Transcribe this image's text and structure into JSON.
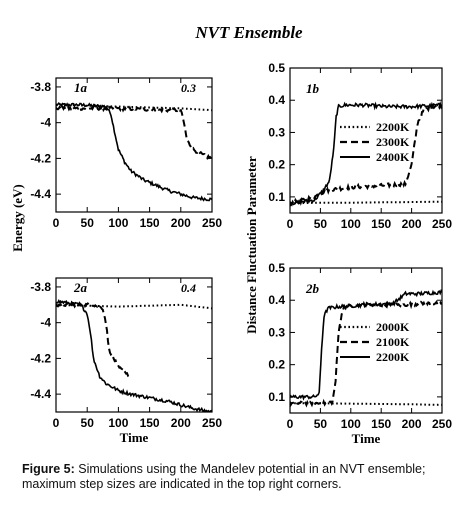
{
  "figure": {
    "title": "NVT Ensemble",
    "caption_label": "Figure 5:",
    "caption_text": "Simulations using the Mandelev potential in an NVT ensemble; maximum step sizes are indicated in the top right corners.",
    "left_ylabel": "Energy (eV)",
    "right_ylabel": "Distance Fluctuation Parameter"
  },
  "chart_data": [
    {
      "id": "1a",
      "type": "line",
      "panel_label": "1a",
      "corner_note": "0.3",
      "xlabel": "",
      "ylabel": "Energy (eV)",
      "xlim": [
        0,
        250
      ],
      "ylim": [
        -4.5,
        -3.75
      ],
      "xticks": [
        0,
        50,
        100,
        150,
        200,
        250
      ],
      "yticks": [
        -3.8,
        -4,
        -4.2,
        -4.4
      ],
      "series": [
        {
          "style": "solid",
          "x": [
            0,
            40,
            80,
            88,
            92,
            100,
            110,
            120,
            140,
            160,
            180,
            200,
            220,
            250
          ],
          "y": [
            -3.9,
            -3.9,
            -3.91,
            -3.95,
            -4.02,
            -4.15,
            -4.22,
            -4.27,
            -4.32,
            -4.35,
            -4.38,
            -4.4,
            -4.42,
            -4.43
          ]
        },
        {
          "style": "dashed",
          "x": [
            0,
            100,
            180,
            200,
            205,
            210,
            220,
            235,
            250
          ],
          "y": [
            -3.92,
            -3.92,
            -3.93,
            -3.93,
            -4.0,
            -4.1,
            -4.15,
            -4.18,
            -4.2
          ]
        },
        {
          "style": "dotted",
          "x": [
            0,
            100,
            200,
            250
          ],
          "y": [
            -3.9,
            -3.91,
            -3.92,
            -3.93
          ]
        }
      ]
    },
    {
      "id": "1b",
      "type": "line",
      "panel_label": "1b",
      "corner_note": "",
      "xlabel": "",
      "ylabel": "Distance Fluctuation Parameter",
      "xlim": [
        0,
        250
      ],
      "ylim": [
        0.05,
        0.5
      ],
      "xticks": [
        0,
        50,
        100,
        150,
        200,
        250
      ],
      "yticks": [
        0.1,
        0.2,
        0.3,
        0.4,
        0.5
      ],
      "legend": [
        "2200K",
        "2300K",
        "2400K"
      ],
      "series": [
        {
          "name": "2200K",
          "style": "dotted",
          "x": [
            0,
            50,
            100,
            150,
            200,
            250
          ],
          "y": [
            0.08,
            0.082,
            0.082,
            0.083,
            0.084,
            0.085
          ]
        },
        {
          "name": "2300K",
          "style": "dashed",
          "x": [
            0,
            40,
            60,
            100,
            150,
            190,
            200,
            210,
            220,
            235,
            250
          ],
          "y": [
            0.08,
            0.1,
            0.12,
            0.13,
            0.135,
            0.14,
            0.2,
            0.33,
            0.37,
            0.38,
            0.385
          ]
        },
        {
          "name": "2400K",
          "style": "solid",
          "x": [
            0,
            40,
            55,
            65,
            72,
            76,
            80,
            90,
            120,
            160,
            200,
            250
          ],
          "y": [
            0.08,
            0.09,
            0.12,
            0.15,
            0.25,
            0.35,
            0.38,
            0.385,
            0.385,
            0.38,
            0.38,
            0.385
          ]
        }
      ]
    },
    {
      "id": "2a",
      "type": "line",
      "panel_label": "2a",
      "corner_note": "0.4",
      "xlabel": "Time",
      "ylabel": "Energy (eV)",
      "xlim": [
        0,
        250
      ],
      "ylim": [
        -4.5,
        -3.75
      ],
      "xticks": [
        0,
        50,
        100,
        150,
        200,
        250
      ],
      "yticks": [
        -3.8,
        -4,
        -4.2,
        -4.4
      ],
      "series": [
        {
          "style": "solid",
          "x": [
            0,
            40,
            50,
            55,
            60,
            70,
            80,
            100,
            120,
            150,
            180,
            200,
            220,
            250
          ],
          "y": [
            -3.88,
            -3.9,
            -3.95,
            -4.05,
            -4.2,
            -4.3,
            -4.34,
            -4.38,
            -4.4,
            -4.42,
            -4.44,
            -4.46,
            -4.48,
            -4.5
          ]
        },
        {
          "style": "dashed",
          "x": [
            0,
            60,
            75,
            80,
            85,
            100,
            120
          ],
          "y": [
            -3.9,
            -3.9,
            -3.92,
            -4.0,
            -4.15,
            -4.25,
            -4.3
          ]
        },
        {
          "style": "dotted",
          "x": [
            0,
            100,
            200,
            250
          ],
          "y": [
            -3.9,
            -3.91,
            -3.9,
            -3.92
          ]
        }
      ]
    },
    {
      "id": "2b",
      "type": "line",
      "panel_label": "2b",
      "corner_note": "",
      "xlabel": "Time",
      "ylabel": "Distance Fluctuation Parameter",
      "xlim": [
        0,
        250
      ],
      "ylim": [
        0.05,
        0.5
      ],
      "xticks": [
        0,
        50,
        100,
        150,
        200,
        250
      ],
      "yticks": [
        0.1,
        0.2,
        0.3,
        0.4,
        0.5
      ],
      "legend": [
        "2000K",
        "2100K",
        "2200K"
      ],
      "series": [
        {
          "name": "2000K",
          "style": "dotted",
          "x": [
            0,
            50,
            100,
            150,
            200,
            250
          ],
          "y": [
            0.08,
            0.08,
            0.079,
            0.078,
            0.077,
            0.075
          ]
        },
        {
          "name": "2100K",
          "style": "dashed",
          "x": [
            0,
            60,
            70,
            75,
            80,
            85,
            90,
            120,
            180,
            220,
            250
          ],
          "y": [
            0.08,
            0.08,
            0.085,
            0.15,
            0.3,
            0.36,
            0.38,
            0.385,
            0.385,
            0.39,
            0.39
          ]
        },
        {
          "name": "2200K",
          "style": "solid",
          "x": [
            0,
            40,
            48,
            52,
            56,
            62,
            80,
            120,
            170,
            190,
            210,
            250
          ],
          "y": [
            0.1,
            0.1,
            0.11,
            0.25,
            0.35,
            0.375,
            0.38,
            0.385,
            0.39,
            0.42,
            0.42,
            0.425
          ]
        }
      ]
    }
  ]
}
